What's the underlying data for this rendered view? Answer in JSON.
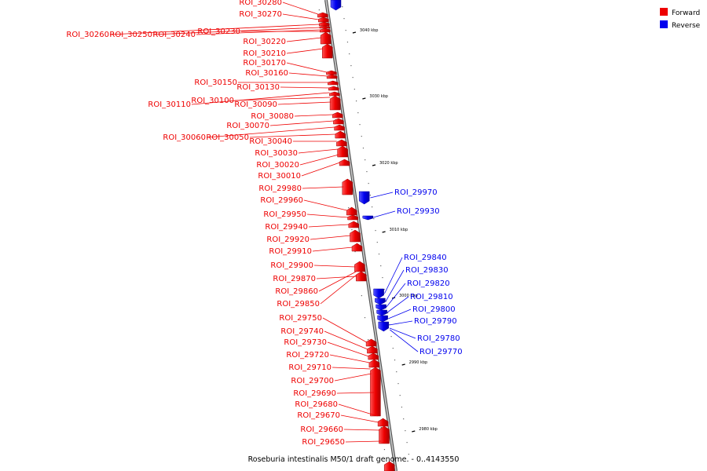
{
  "colors": {
    "forward": "#ee0000",
    "reverse": "#0000ee",
    "backbone": "#999999"
  },
  "legend": [
    {
      "name": "Forward",
      "color": "#ee0000"
    },
    {
      "name": "Reverse",
      "color": "#0000ee"
    }
  ],
  "caption": "Roseburia intestinalis M50/1 draft genome. - 0..4143550",
  "ticks": [
    "3040 kbp",
    "3030 kbp",
    "3020 kbp",
    "3010 kbp",
    "3000 kbp",
    "2990 kbp",
    "2980 kbp"
  ],
  "forward_labels": [
    "ROI_30280",
    "ROI_30270",
    "ROI_30260",
    "ROI_30250",
    "ROI_30240",
    "ROI_30230",
    "ROI_30220",
    "ROI_30210",
    "ROI_30170",
    "ROI_30160",
    "ROI_30150",
    "ROI_30130",
    "ROI_30110",
    "ROI_30100",
    "ROI_30090",
    "ROI_30080",
    "ROI_30070",
    "ROI_30060",
    "ROI_30050",
    "ROI_30040",
    "ROI_30030",
    "ROI_30020",
    "ROI_30010",
    "ROI_29980",
    "ROI_29960",
    "ROI_29950",
    "ROI_29940",
    "ROI_29920",
    "ROI_29910",
    "ROI_29900",
    "ROI_29870",
    "ROI_29860",
    "ROI_29850",
    "ROI_29750",
    "ROI_29740",
    "ROI_29730",
    "ROI_29720",
    "ROI_29710",
    "ROI_29700",
    "ROI_29690",
    "ROI_29680",
    "ROI_29670",
    "ROI_29660",
    "ROI_29650"
  ],
  "reverse_labels": [
    "ROI_29970",
    "ROI_29930",
    "ROI_29840",
    "ROI_29830",
    "ROI_29820",
    "ROI_29810",
    "ROI_29800",
    "ROI_29790",
    "ROI_29780",
    "ROI_29770"
  ]
}
